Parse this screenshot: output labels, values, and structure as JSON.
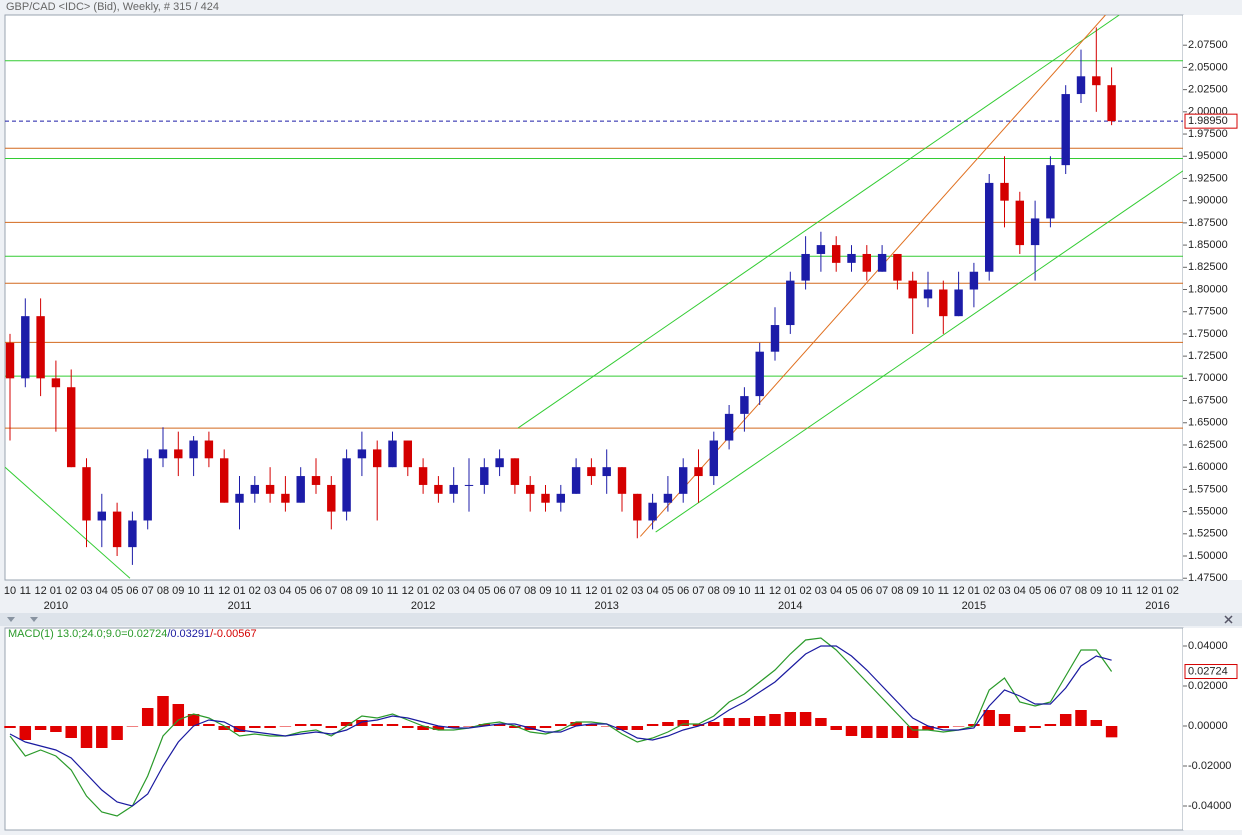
{
  "chart_data": [
    {
      "type": "candlestick",
      "title": "GBP/CAD <IDC> (Bid), Weekly, # 315 / 424",
      "categories": [
        "10",
        "11",
        "12",
        "01",
        "02",
        "03",
        "04",
        "05",
        "06",
        "07",
        "08",
        "09",
        "10",
        "11",
        "12",
        "01",
        "02",
        "03",
        "04",
        "05",
        "06",
        "07",
        "08",
        "09",
        "10",
        "11",
        "12",
        "01",
        "02",
        "03",
        "04",
        "05",
        "06",
        "07",
        "08",
        "09",
        "10",
        "11",
        "12",
        "01",
        "02",
        "03",
        "04",
        "05",
        "06",
        "07",
        "08",
        "09",
        "10",
        "11",
        "12",
        "01",
        "02",
        "03",
        "04",
        "05",
        "06",
        "07",
        "08",
        "09",
        "10",
        "11",
        "12",
        "01",
        "02",
        "03",
        "04",
        "05",
        "06",
        "07",
        "08",
        "09",
        "10",
        "11",
        "12",
        "01",
        "02"
      ],
      "years": [
        null,
        null,
        null,
        "2010",
        null,
        null,
        null,
        null,
        null,
        null,
        null,
        null,
        null,
        null,
        null,
        "2011",
        null,
        null,
        null,
        null,
        null,
        null,
        null,
        null,
        null,
        null,
        null,
        "2012",
        null,
        null,
        null,
        null,
        null,
        null,
        null,
        null,
        null,
        null,
        null,
        "2013",
        null,
        null,
        null,
        null,
        null,
        null,
        null,
        null,
        null,
        null,
        null,
        "2014",
        null,
        null,
        null,
        null,
        null,
        null,
        null,
        null,
        null,
        null,
        null,
        "2015",
        null,
        null,
        null,
        null,
        null,
        null,
        null,
        null,
        null,
        null,
        null,
        "2016",
        null
      ],
      "open": [
        1.74,
        1.7,
        1.77,
        1.7,
        1.69,
        1.6,
        1.54,
        1.55,
        1.51,
        1.54,
        1.61,
        1.62,
        1.61,
        1.63,
        1.61,
        1.56,
        1.57,
        1.58,
        1.57,
        1.56,
        1.59,
        1.58,
        1.55,
        1.61,
        1.62,
        1.6,
        1.63,
        1.6,
        1.58,
        1.57,
        1.58,
        1.58,
        1.6,
        1.61,
        1.58,
        1.57,
        1.56,
        1.57,
        1.6,
        1.59,
        1.6,
        1.57,
        1.54,
        1.56,
        1.57,
        1.6,
        1.59,
        1.63,
        1.66,
        1.68,
        1.73,
        1.76,
        1.81,
        1.84,
        1.85,
        1.83,
        1.84,
        1.82,
        1.84,
        1.81,
        1.79,
        1.8,
        1.77,
        1.8,
        1.82,
        1.92,
        1.9,
        1.85,
        1.88,
        1.94,
        2.02,
        2.04,
        2.03,
        null,
        null,
        null,
        null
      ],
      "high": [
        1.75,
        1.79,
        1.79,
        1.72,
        1.71,
        1.61,
        1.57,
        1.56,
        1.55,
        1.62,
        1.645,
        1.64,
        1.635,
        1.64,
        1.62,
        1.59,
        1.59,
        1.6,
        1.59,
        1.6,
        1.61,
        1.59,
        1.62,
        1.64,
        1.63,
        1.64,
        1.63,
        1.61,
        1.59,
        1.6,
        1.61,
        1.61,
        1.62,
        1.61,
        1.59,
        1.58,
        1.58,
        1.61,
        1.61,
        1.62,
        1.6,
        1.57,
        1.57,
        1.59,
        1.61,
        1.62,
        1.64,
        1.67,
        1.69,
        1.74,
        1.78,
        1.82,
        1.86,
        1.865,
        1.86,
        1.85,
        1.85,
        1.85,
        1.84,
        1.82,
        1.82,
        1.81,
        1.82,
        1.83,
        1.93,
        1.95,
        1.91,
        1.9,
        1.95,
        2.03,
        2.07,
        2.095,
        2.05,
        null,
        null,
        null,
        null
      ],
      "low": [
        1.63,
        1.69,
        1.68,
        1.64,
        1.6,
        1.51,
        1.51,
        1.5,
        1.49,
        1.53,
        1.6,
        1.59,
        1.59,
        1.6,
        1.56,
        1.53,
        1.56,
        1.56,
        1.55,
        1.56,
        1.57,
        1.53,
        1.54,
        1.59,
        1.54,
        1.6,
        1.59,
        1.57,
        1.56,
        1.56,
        1.55,
        1.57,
        1.59,
        1.57,
        1.55,
        1.55,
        1.55,
        1.57,
        1.58,
        1.57,
        1.55,
        1.52,
        1.53,
        1.55,
        1.56,
        1.56,
        1.58,
        1.62,
        1.64,
        1.67,
        1.72,
        1.75,
        1.8,
        1.82,
        1.82,
        1.82,
        1.81,
        1.82,
        1.8,
        1.75,
        1.78,
        1.75,
        1.77,
        1.78,
        1.81,
        1.87,
        1.84,
        1.81,
        1.87,
        1.93,
        2.01,
        2.0,
        1.985,
        null,
        null,
        null,
        null
      ],
      "close": [
        1.7,
        1.77,
        1.7,
        1.69,
        1.6,
        1.54,
        1.55,
        1.51,
        1.54,
        1.61,
        1.62,
        1.61,
        1.63,
        1.61,
        1.56,
        1.57,
        1.58,
        1.57,
        1.56,
        1.59,
        1.58,
        1.55,
        1.61,
        1.62,
        1.6,
        1.63,
        1.6,
        1.58,
        1.57,
        1.58,
        1.58,
        1.6,
        1.61,
        1.58,
        1.57,
        1.56,
        1.57,
        1.6,
        1.59,
        1.6,
        1.57,
        1.54,
        1.56,
        1.57,
        1.6,
        1.59,
        1.63,
        1.66,
        1.68,
        1.73,
        1.76,
        1.81,
        1.84,
        1.85,
        1.83,
        1.84,
        1.82,
        1.84,
        1.81,
        1.79,
        1.8,
        1.77,
        1.8,
        1.82,
        1.92,
        1.9,
        1.85,
        1.88,
        1.94,
        2.02,
        2.04,
        2.03,
        1.9895,
        null,
        null,
        null,
        null
      ],
      "up_color": "#1c1ca8",
      "down_color": "#d40000",
      "ylim": [
        1.473,
        2.109
      ],
      "yticks": [
        {
          "value": 1.475,
          "label": "1.47500"
        },
        {
          "value": 1.5,
          "label": "1.50000"
        },
        {
          "value": 1.525,
          "label": "1.52500"
        },
        {
          "value": 1.55,
          "label": "1.55000"
        },
        {
          "value": 1.575,
          "label": "1.57500"
        },
        {
          "value": 1.6,
          "label": "1.60000"
        },
        {
          "value": 1.625,
          "label": "1.62500"
        },
        {
          "value": 1.65,
          "label": "1.65000"
        },
        {
          "value": 1.675,
          "label": "1.67500"
        },
        {
          "value": 1.7,
          "label": "1.70000"
        },
        {
          "value": 1.725,
          "label": "1.72500"
        },
        {
          "value": 1.75,
          "label": "1.75000"
        },
        {
          "value": 1.775,
          "label": "1.77500"
        },
        {
          "value": 1.8,
          "label": "1.80000"
        },
        {
          "value": 1.825,
          "label": "1.82500"
        },
        {
          "value": 1.85,
          "label": "1.85000"
        },
        {
          "value": 1.875,
          "label": "1.87500"
        },
        {
          "value": 1.9,
          "label": "1.90000"
        },
        {
          "value": 1.925,
          "label": "1.92500"
        },
        {
          "value": 1.95,
          "label": "1.95000"
        },
        {
          "value": 1.975,
          "label": "1.97500"
        },
        {
          "value": 2.0,
          "label": "2.00000"
        },
        {
          "value": 2.025,
          "label": "2.02500"
        },
        {
          "value": 2.05,
          "label": "2.05000"
        },
        {
          "value": 2.075,
          "label": "2.07500"
        }
      ],
      "levels": [
        {
          "value": 2.0575,
          "color": "#33cc33"
        },
        {
          "value": 1.9475,
          "color": "#33cc33"
        },
        {
          "value": 1.8375,
          "color": "#33cc33"
        },
        {
          "value": 1.7025,
          "color": "#33cc33"
        },
        {
          "value": 1.959,
          "color": "#d2691e"
        },
        {
          "value": 1.8755,
          "color": "#d2691e"
        },
        {
          "value": 1.807,
          "color": "#d2691e"
        },
        {
          "value": 1.7405,
          "color": "#d2691e"
        },
        {
          "value": 1.644,
          "color": "#d2691e"
        }
      ],
      "price_label": {
        "value": 1.9895,
        "label": "1.98950"
      },
      "trendlines": [
        {
          "color": "#33cc33",
          "points": [
            [
              42.2,
              1.527
            ],
            [
              76.7,
              1.934
            ]
          ]
        },
        {
          "color": "#33cc33",
          "points": [
            [
              33.2,
              1.644
            ],
            [
              72.5,
              2.109
            ]
          ]
        },
        {
          "color": "#e07020",
          "points": [
            [
              41.2,
              1.522
            ],
            [
              71.6,
              2.109
            ]
          ]
        },
        {
          "color": "#33cc33",
          "points": [
            [
              -0.33,
              1.6
            ],
            [
              7.84,
              1.475
            ]
          ]
        }
      ]
    },
    {
      "type": "macd",
      "title": "MACD(1) 13.0;24.0;9.0=",
      "separator": "/",
      "ylim": [
        -0.052,
        0.049
      ],
      "yticks": [
        {
          "value": -0.04,
          "label": "-0.04000"
        },
        {
          "value": -0.02,
          "label": "-0.02000"
        },
        {
          "value": 0,
          "label": "0.00000"
        },
        {
          "value": 0.02,
          "label": "0.02000"
        },
        {
          "value": 0.04,
          "label": "0.04000"
        }
      ],
      "series": [
        {
          "color": "#2a9a2a",
          "values": [
            -0.005,
            -0.015,
            -0.012,
            -0.015,
            -0.022,
            -0.035,
            -0.043,
            -0.045,
            -0.04,
            -0.025,
            -0.005,
            0.003,
            0.006,
            0.004,
            0.0,
            -0.005,
            -0.004,
            -0.005,
            -0.005,
            -0.003,
            -0.002,
            -0.005,
            0.0,
            0.005,
            0.004,
            0.006,
            0.003,
            0.0,
            -0.002,
            -0.002,
            -0.001,
            0.001,
            0.002,
            0.0,
            -0.003,
            -0.004,
            -0.002,
            0.002,
            0.002,
            0.001,
            -0.004,
            -0.008,
            -0.006,
            -0.003,
            0.001,
            0.001,
            0.005,
            0.012,
            0.016,
            0.022,
            0.028,
            0.036,
            0.043,
            0.044,
            0.038,
            0.03,
            0.022,
            0.014,
            0.006,
            -0.002,
            -0.002,
            -0.003,
            -0.002,
            0.0,
            0.018,
            0.024,
            0.012,
            0.01,
            0.012,
            0.025,
            0.038,
            0.038,
            0.02724,
            null,
            null,
            null,
            null
          ]
        },
        {
          "color": "#1a1aa0",
          "values": [
            -0.004,
            -0.008,
            -0.01,
            -0.012,
            -0.016,
            -0.024,
            -0.032,
            -0.038,
            -0.04,
            -0.034,
            -0.02,
            -0.008,
            0.0,
            0.003,
            0.002,
            -0.002,
            -0.003,
            -0.004,
            -0.005,
            -0.004,
            -0.003,
            -0.004,
            -0.002,
            0.002,
            0.003,
            0.005,
            0.004,
            0.002,
            0.0,
            -0.001,
            -0.001,
            0.0,
            0.001,
            0.001,
            -0.001,
            -0.003,
            -0.003,
            0.0,
            0.001,
            0.001,
            -0.002,
            -0.006,
            -0.007,
            -0.005,
            -0.002,
            0.0,
            0.003,
            0.008,
            0.012,
            0.017,
            0.022,
            0.029,
            0.036,
            0.04,
            0.04,
            0.035,
            0.028,
            0.02,
            0.012,
            0.004,
            0.0,
            -0.002,
            -0.002,
            -0.001,
            0.01,
            0.018,
            0.015,
            0.011,
            0.011,
            0.019,
            0.03,
            0.035,
            0.03291,
            null,
            null,
            null,
            null
          ]
        }
      ],
      "histogram": {
        "color": "#e00000",
        "values": [
          -0.001,
          -0.007,
          -0.002,
          -0.003,
          -0.006,
          -0.011,
          -0.011,
          -0.007,
          0.0,
          0.009,
          0.015,
          0.011,
          0.006,
          0.001,
          -0.002,
          -0.003,
          -0.001,
          -0.001,
          0.0,
          0.001,
          0.001,
          -0.001,
          0.002,
          0.003,
          0.001,
          0.001,
          -0.001,
          -0.002,
          -0.002,
          -0.001,
          0.0,
          0.001,
          0.001,
          -0.001,
          -0.002,
          -0.001,
          0.001,
          0.002,
          0.001,
          0.0,
          -0.002,
          -0.002,
          0.001,
          0.002,
          0.003,
          0.001,
          0.002,
          0.004,
          0.004,
          0.005,
          0.006,
          0.007,
          0.007,
          0.004,
          -0.002,
          -0.005,
          -0.006,
          -0.006,
          -0.006,
          -0.006,
          -0.002,
          -0.001,
          0.0,
          0.001,
          0.008,
          0.006,
          -0.003,
          -0.001,
          0.001,
          0.006,
          0.008,
          0.003,
          -0.00567,
          null,
          null,
          null,
          null
        ]
      }
    }
  ]
}
